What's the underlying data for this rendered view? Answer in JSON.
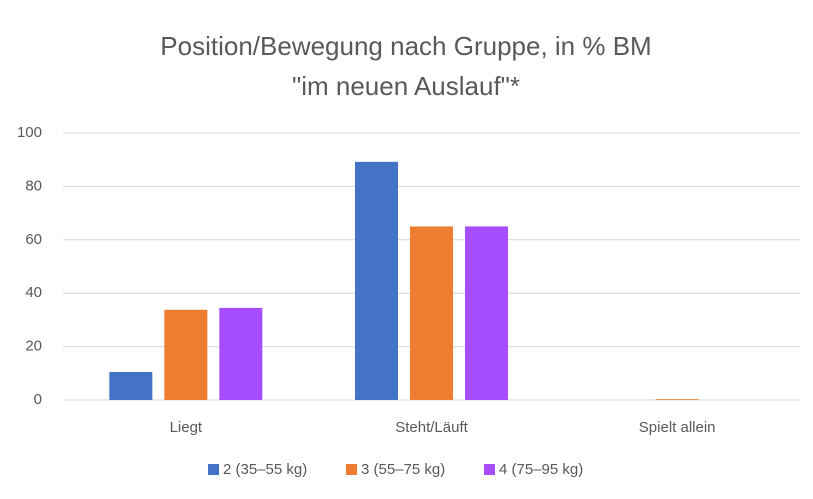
{
  "chart_data": {
    "type": "bar",
    "title": [
      "Position/Bewegung nach Gruppe, in % BM",
      "\"im neuen Auslauf\"*"
    ],
    "categories": [
      "Liegt",
      "Steht/Läuft",
      "Spielt allein"
    ],
    "series": [
      {
        "name": "2 (35–55 kg)",
        "color": "#4472c4",
        "values": [
          10.5,
          89.2,
          0
        ]
      },
      {
        "name": "3 (55–75 kg)",
        "color": "#ed7d31",
        "values": [
          33.8,
          65,
          0.3
        ]
      },
      {
        "name": "4 (75–95 kg)",
        "color": "#a64dff",
        "values": [
          34.5,
          65,
          0
        ]
      }
    ],
    "ylim": [
      0,
      100
    ],
    "yticks": [
      0,
      20,
      40,
      60,
      80,
      100
    ],
    "grid": true,
    "legend": "bottom"
  }
}
